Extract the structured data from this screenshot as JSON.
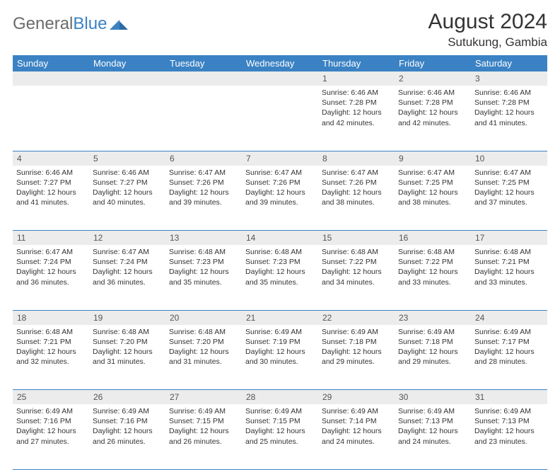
{
  "logo": {
    "text1": "General",
    "text2": "Blue"
  },
  "title": "August 2024",
  "location": "Sutukung, Gambia",
  "colors": {
    "header_bg": "#3b82c4",
    "header_text": "#ffffff",
    "daynum_bg": "#ececec",
    "border": "#3b82c4",
    "body_text": "#333333",
    "logo_gray": "#6b6b6b",
    "logo_blue": "#3b82c4"
  },
  "dayNames": [
    "Sunday",
    "Monday",
    "Tuesday",
    "Wednesday",
    "Thursday",
    "Friday",
    "Saturday"
  ],
  "weeks": [
    [
      null,
      null,
      null,
      null,
      {
        "n": "1",
        "sr": "6:46 AM",
        "ss": "7:28 PM",
        "dl": "12 hours and 42 minutes."
      },
      {
        "n": "2",
        "sr": "6:46 AM",
        "ss": "7:28 PM",
        "dl": "12 hours and 42 minutes."
      },
      {
        "n": "3",
        "sr": "6:46 AM",
        "ss": "7:28 PM",
        "dl": "12 hours and 41 minutes."
      }
    ],
    [
      {
        "n": "4",
        "sr": "6:46 AM",
        "ss": "7:27 PM",
        "dl": "12 hours and 41 minutes."
      },
      {
        "n": "5",
        "sr": "6:46 AM",
        "ss": "7:27 PM",
        "dl": "12 hours and 40 minutes."
      },
      {
        "n": "6",
        "sr": "6:47 AM",
        "ss": "7:26 PM",
        "dl": "12 hours and 39 minutes."
      },
      {
        "n": "7",
        "sr": "6:47 AM",
        "ss": "7:26 PM",
        "dl": "12 hours and 39 minutes."
      },
      {
        "n": "8",
        "sr": "6:47 AM",
        "ss": "7:26 PM",
        "dl": "12 hours and 38 minutes."
      },
      {
        "n": "9",
        "sr": "6:47 AM",
        "ss": "7:25 PM",
        "dl": "12 hours and 38 minutes."
      },
      {
        "n": "10",
        "sr": "6:47 AM",
        "ss": "7:25 PM",
        "dl": "12 hours and 37 minutes."
      }
    ],
    [
      {
        "n": "11",
        "sr": "6:47 AM",
        "ss": "7:24 PM",
        "dl": "12 hours and 36 minutes."
      },
      {
        "n": "12",
        "sr": "6:47 AM",
        "ss": "7:24 PM",
        "dl": "12 hours and 36 minutes."
      },
      {
        "n": "13",
        "sr": "6:48 AM",
        "ss": "7:23 PM",
        "dl": "12 hours and 35 minutes."
      },
      {
        "n": "14",
        "sr": "6:48 AM",
        "ss": "7:23 PM",
        "dl": "12 hours and 35 minutes."
      },
      {
        "n": "15",
        "sr": "6:48 AM",
        "ss": "7:22 PM",
        "dl": "12 hours and 34 minutes."
      },
      {
        "n": "16",
        "sr": "6:48 AM",
        "ss": "7:22 PM",
        "dl": "12 hours and 33 minutes."
      },
      {
        "n": "17",
        "sr": "6:48 AM",
        "ss": "7:21 PM",
        "dl": "12 hours and 33 minutes."
      }
    ],
    [
      {
        "n": "18",
        "sr": "6:48 AM",
        "ss": "7:21 PM",
        "dl": "12 hours and 32 minutes."
      },
      {
        "n": "19",
        "sr": "6:48 AM",
        "ss": "7:20 PM",
        "dl": "12 hours and 31 minutes."
      },
      {
        "n": "20",
        "sr": "6:48 AM",
        "ss": "7:20 PM",
        "dl": "12 hours and 31 minutes."
      },
      {
        "n": "21",
        "sr": "6:49 AM",
        "ss": "7:19 PM",
        "dl": "12 hours and 30 minutes."
      },
      {
        "n": "22",
        "sr": "6:49 AM",
        "ss": "7:18 PM",
        "dl": "12 hours and 29 minutes."
      },
      {
        "n": "23",
        "sr": "6:49 AM",
        "ss": "7:18 PM",
        "dl": "12 hours and 29 minutes."
      },
      {
        "n": "24",
        "sr": "6:49 AM",
        "ss": "7:17 PM",
        "dl": "12 hours and 28 minutes."
      }
    ],
    [
      {
        "n": "25",
        "sr": "6:49 AM",
        "ss": "7:16 PM",
        "dl": "12 hours and 27 minutes."
      },
      {
        "n": "26",
        "sr": "6:49 AM",
        "ss": "7:16 PM",
        "dl": "12 hours and 26 minutes."
      },
      {
        "n": "27",
        "sr": "6:49 AM",
        "ss": "7:15 PM",
        "dl": "12 hours and 26 minutes."
      },
      {
        "n": "28",
        "sr": "6:49 AM",
        "ss": "7:15 PM",
        "dl": "12 hours and 25 minutes."
      },
      {
        "n": "29",
        "sr": "6:49 AM",
        "ss": "7:14 PM",
        "dl": "12 hours and 24 minutes."
      },
      {
        "n": "30",
        "sr": "6:49 AM",
        "ss": "7:13 PM",
        "dl": "12 hours and 24 minutes."
      },
      {
        "n": "31",
        "sr": "6:49 AM",
        "ss": "7:13 PM",
        "dl": "12 hours and 23 minutes."
      }
    ]
  ],
  "labels": {
    "sunrise": "Sunrise: ",
    "sunset": "Sunset: ",
    "daylight": "Daylight: "
  }
}
